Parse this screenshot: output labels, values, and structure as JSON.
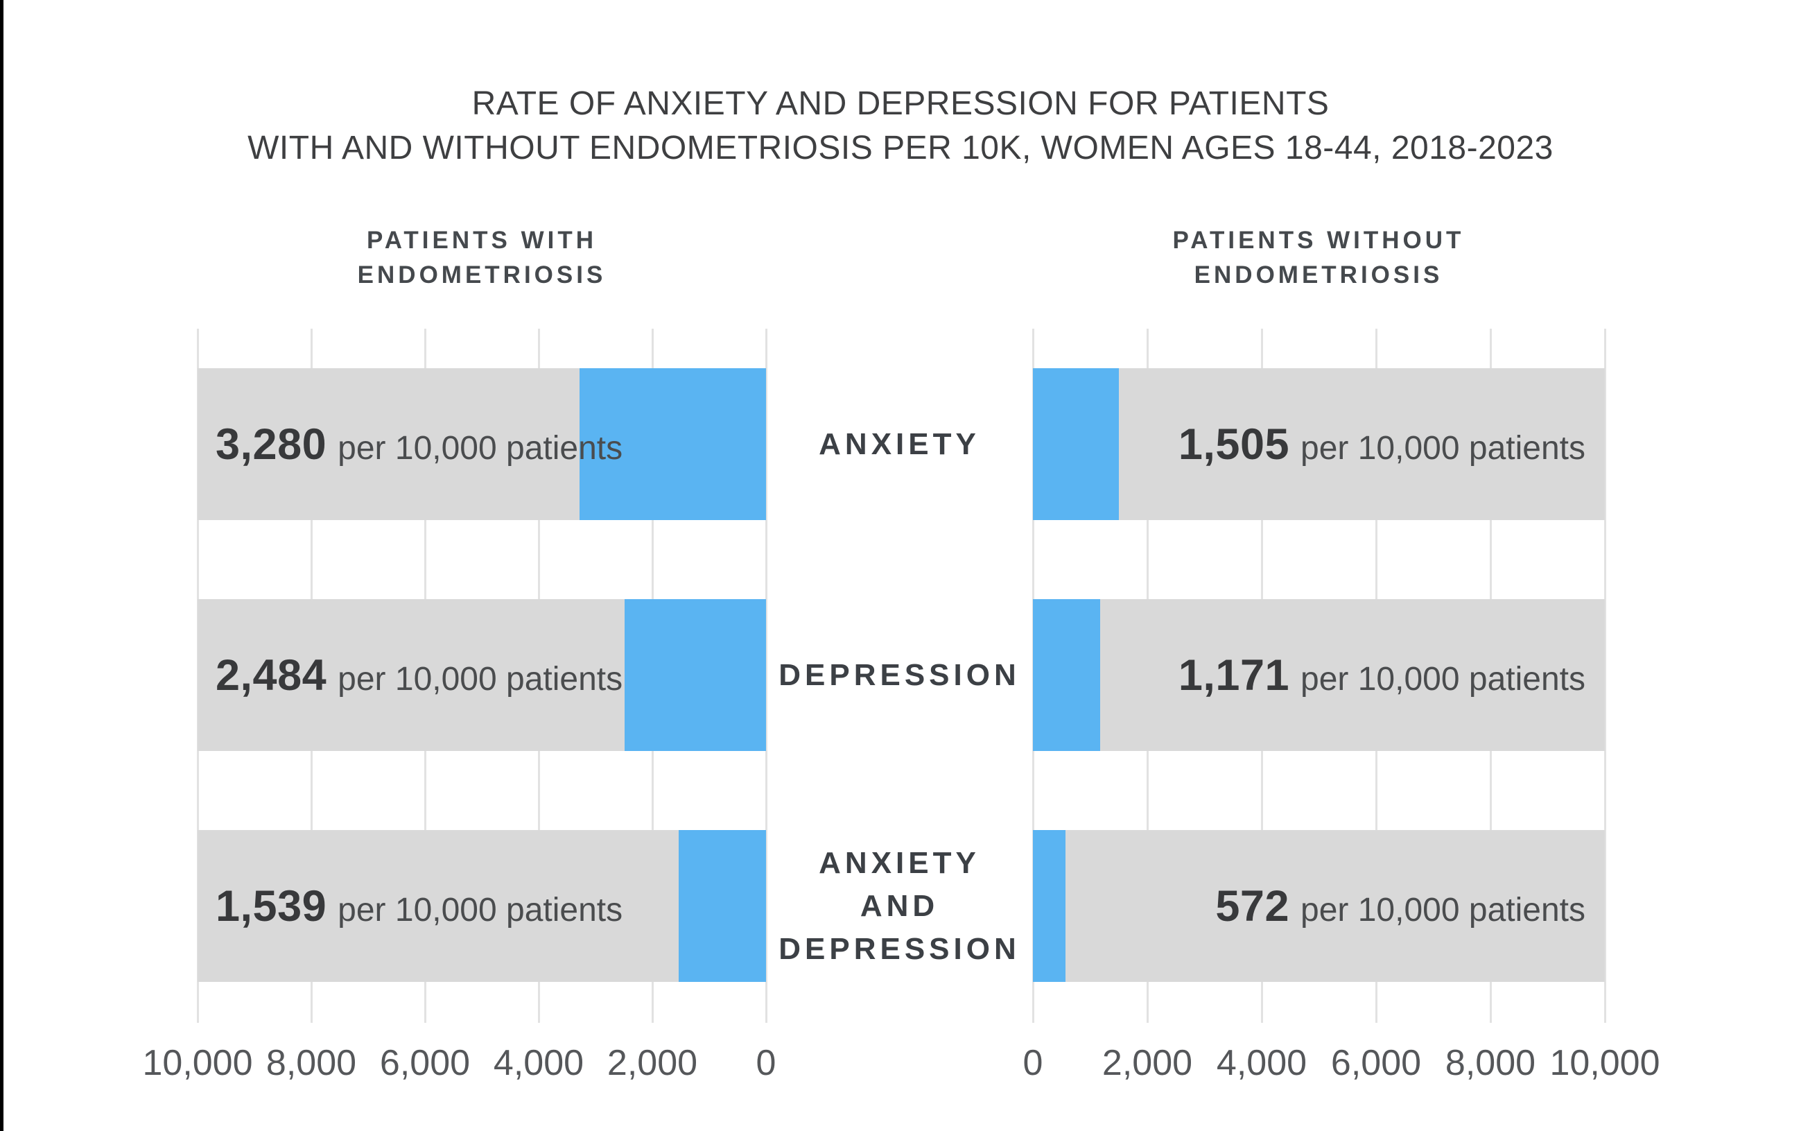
{
  "title": {
    "line1": "RATE OF ANXIETY AND DEPRESSION FOR PATIENTS",
    "line2": "WITH AND WITHOUT ENDOMETRIOSIS PER 10K, WOMEN AGES 18-44, 2018-2023"
  },
  "panels": {
    "left": {
      "header_line1": "PATIENTS WITH",
      "header_line2": "ENDOMETRIOSIS"
    },
    "right": {
      "header_line1": "PATIENTS WITHOUT",
      "header_line2": "ENDOMETRIOSIS"
    }
  },
  "categories": {
    "anxiety": {
      "line1": "ANXIETY"
    },
    "depression": {
      "line1": "DEPRESSION"
    },
    "both": {
      "line1": "ANXIETY",
      "line2": "AND",
      "line3": "DEPRESSION"
    }
  },
  "bar_labels": {
    "left": [
      {
        "value": "3,280",
        "unit": "per 10,000 patients"
      },
      {
        "value": "2,484",
        "unit": "per 10,000 patients"
      },
      {
        "value": "1,539",
        "unit": "per 10,000 patients"
      }
    ],
    "right": [
      {
        "value": "1,505",
        "unit": "per 10,000 patients"
      },
      {
        "value": "1,171",
        "unit": "per 10,000 patients"
      },
      {
        "value": "572",
        "unit": "per 10,000 patients"
      }
    ]
  },
  "chart_data": {
    "type": "bar",
    "variant": "diverging-horizontal-butterfly",
    "title": "RATE OF ANXIETY AND DEPRESSION FOR PATIENTS WITH AND WITHOUT ENDOMETRIOSIS PER 10K, WOMEN AGES 18-44, 2018-2023",
    "categories": [
      "ANXIETY",
      "DEPRESSION",
      "ANXIETY AND DEPRESSION"
    ],
    "series": [
      {
        "name": "PATIENTS WITH ENDOMETRIOSIS",
        "values": [
          3280,
          2484,
          1539
        ]
      },
      {
        "name": "PATIENTS WITHOUT ENDOMETRIOSIS",
        "values": [
          1505,
          1171,
          572
        ]
      }
    ],
    "unit": "per 10,000 patients",
    "axis_max": 10000,
    "axis_ticks_left_chart": [
      "10,000",
      "8,000",
      "6,000",
      "4,000",
      "2,000",
      "0"
    ],
    "axis_ticks_right_chart": [
      "0",
      "2,000",
      "4,000",
      "6,000",
      "8,000",
      "10,000"
    ],
    "gridlines": "vertical, every 2,000 units",
    "legend_position": "none",
    "colors": {
      "bar_track_gray": "#d9d9d9",
      "bar_value_blue": "#5ab4f2",
      "gridline": "#e2e2e2",
      "text_dark": "#38393b",
      "edge_strip_black": "#000000"
    }
  }
}
